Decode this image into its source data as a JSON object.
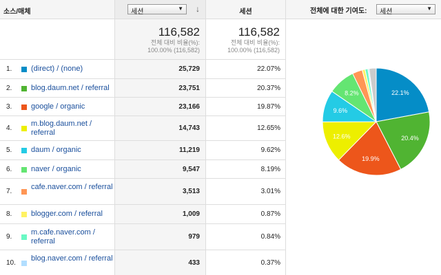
{
  "header": {
    "dimension_label": "소스/매체",
    "metric_select": "세션",
    "sessions_label": "세션",
    "contribution_label": "전체에 대한 기여도:",
    "contribution_select": "세션"
  },
  "totals": {
    "primary": "116,582",
    "primary_sub1": "전체 대비 비율(%):",
    "primary_sub2": "100.00% (116,582)",
    "sessions": "116,582",
    "sessions_sub1": "전체 대비 비율(%):",
    "sessions_sub2": "100.00% (116,582)"
  },
  "rows": [
    {
      "num": "1.",
      "source": "(direct) / (none)",
      "value": "25,729",
      "pct": "22.07%",
      "color": "#058dc7"
    },
    {
      "num": "2.",
      "source": "blog.daum.net / referral",
      "value": "23,751",
      "pct": "20.37%",
      "color": "#50b432"
    },
    {
      "num": "3.",
      "source": "google / organic",
      "value": "23,166",
      "pct": "19.87%",
      "color": "#ed561b"
    },
    {
      "num": "4.",
      "source": "m.blog.daum.net / referral",
      "value": "14,743",
      "pct": "12.65%",
      "color": "#edef00"
    },
    {
      "num": "5.",
      "source": "daum / organic",
      "value": "11,219",
      "pct": "9.62%",
      "color": "#24cbe5"
    },
    {
      "num": "6.",
      "source": "naver / organic",
      "value": "9,547",
      "pct": "8.19%",
      "color": "#64e572"
    },
    {
      "num": "7.",
      "source": "cafe.naver.com / referral",
      "value": "3,513",
      "pct": "3.01%",
      "color": "#ff9655"
    },
    {
      "num": "8.",
      "source": "blogger.com / referral",
      "value": "1,009",
      "pct": "0.87%",
      "color": "#fff263"
    },
    {
      "num": "9.",
      "source": "m.cafe.naver.com / referral",
      "value": "979",
      "pct": "0.84%",
      "color": "#6af9c4"
    },
    {
      "num": "10.",
      "source": "blog.naver.com / referral",
      "value": "433",
      "pct": "0.37%",
      "color": "#b2deff"
    }
  ],
  "chart_data": {
    "type": "pie",
    "slices": [
      {
        "label": "22.1%",
        "value": 22.07,
        "color": "#058dc7"
      },
      {
        "label": "20.4%",
        "value": 20.37,
        "color": "#50b432"
      },
      {
        "label": "19.9%",
        "value": 19.87,
        "color": "#ed561b"
      },
      {
        "label": "12.6%",
        "value": 12.65,
        "color": "#edef00"
      },
      {
        "label": "9.6%",
        "value": 9.62,
        "color": "#24cbe5"
      },
      {
        "label": "8.2%",
        "value": 8.19,
        "color": "#64e572"
      },
      {
        "label": "",
        "value": 3.01,
        "color": "#ff9655"
      },
      {
        "label": "",
        "value": 0.87,
        "color": "#fff263"
      },
      {
        "label": "",
        "value": 0.84,
        "color": "#6af9c4"
      },
      {
        "label": "",
        "value": 0.37,
        "color": "#b2deff"
      },
      {
        "label": "",
        "value": 2.14,
        "color": "#cccccc"
      }
    ]
  }
}
